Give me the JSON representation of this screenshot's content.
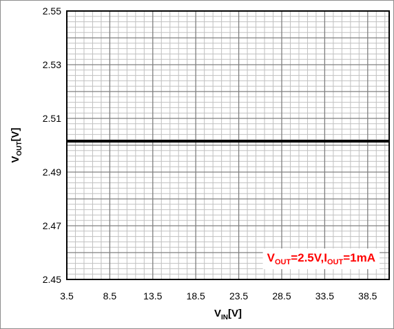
{
  "chart_data": {
    "type": "line",
    "title": "",
    "xlabel": {
      "main": "V",
      "sub": "IN",
      "unit": "[V]"
    },
    "ylabel": {
      "main": "V",
      "sub": "OUT",
      "unit": "[V]"
    },
    "xlim": [
      3.5,
      41
    ],
    "ylim": [
      2.45,
      2.55
    ],
    "x_ticks": [
      3.5,
      8.5,
      13.5,
      18.5,
      23.5,
      28.5,
      33.5,
      38.5
    ],
    "x_tick_labels": [
      "3.5",
      "8.5",
      "13.5",
      "18.5",
      "23.5",
      "28.5",
      "33.5",
      "38.5"
    ],
    "y_ticks": [
      2.45,
      2.47,
      2.49,
      2.51,
      2.53,
      2.55
    ],
    "y_tick_labels": [
      "2.45",
      "2.47",
      "2.49",
      "2.51",
      "2.53",
      "2.55"
    ],
    "x_major_step": 5,
    "x_minor_step": 1,
    "y_major_step": 0.01,
    "y_minor_step": 0.002,
    "grid": true,
    "series": [
      {
        "color": "#000000",
        "x": [
          3.5,
          41
        ],
        "y": [
          2.5015,
          2.5015
        ]
      }
    ],
    "annotation": {
      "parts": [
        {
          "text": "V",
          "sub": false
        },
        {
          "text": "OUT",
          "sub": true
        },
        {
          "text": "=2.5V,I",
          "sub": false
        },
        {
          "text": "OUT",
          "sub": true
        },
        {
          "text": "=1mA",
          "sub": false
        }
      ],
      "color": "#ff0000",
      "placement": "bottom-right"
    }
  }
}
